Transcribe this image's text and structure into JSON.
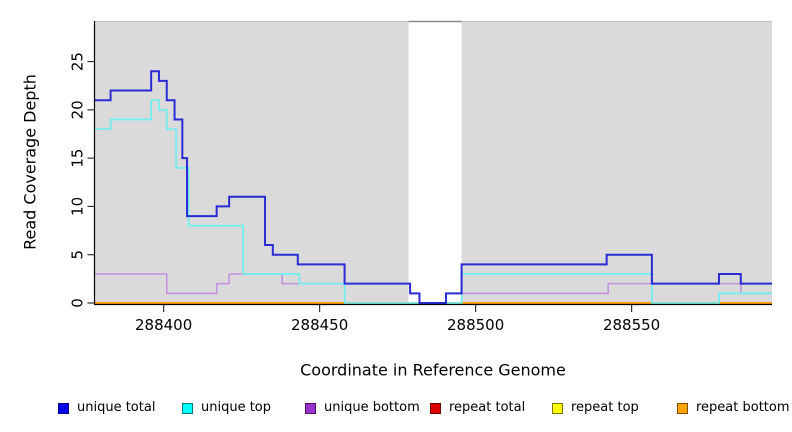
{
  "figure": {
    "x_axis_title": "Coordinate in Reference Genome",
    "y_axis_title": "Read Coverage Depth"
  },
  "chart_data": {
    "type": "line",
    "subtype": "step",
    "title": "",
    "xlabel": "Coordinate in Reference Genome",
    "ylabel": "Read Coverage Depth",
    "xlim": [
      288378,
      288595
    ],
    "ylim": [
      0,
      29.2
    ],
    "x_ticks": [
      288400,
      288450,
      288500,
      288550
    ],
    "y_ticks": [
      0,
      5,
      10,
      15,
      20,
      25
    ],
    "grid": false,
    "plot_bg": "#DADADA",
    "plot_top_edge": "#C4C4C4",
    "gap_region": {
      "x_start": 288478.5,
      "x_end": 288495.5,
      "fill": "#FFFFFF",
      "top_border": "#8A8A8A"
    },
    "legend_position": "bottom",
    "series": [
      {
        "name": "repeat-total",
        "label": "repeat total",
        "line_color": "#CC0000",
        "line_width": 1.4,
        "points": [
          [
            288378,
            0
          ]
        ]
      },
      {
        "name": "repeat-top",
        "label": "repeat top",
        "line_color": "#FFFF00",
        "line_width": 1.4,
        "points": [
          [
            288378,
            0
          ]
        ]
      },
      {
        "name": "repeat-bottom",
        "label": "repeat bottom",
        "line_color": "#FF9D0A",
        "line_width": 2,
        "points": [
          [
            288378,
            0
          ]
        ]
      },
      {
        "name": "unique-bottom",
        "label": "unique bottom",
        "line_color": "#C48FE0",
        "line_width": 1.5,
        "points": [
          [
            288378,
            3
          ],
          [
            288401,
            1
          ],
          [
            288417,
            2
          ],
          [
            288421,
            3
          ],
          [
            288438,
            2
          ],
          [
            288479,
            1
          ],
          [
            288482,
            0
          ],
          [
            288490.5,
            1
          ],
          [
            288542.5,
            2
          ],
          [
            288585,
            1
          ]
        ]
      },
      {
        "name": "unique-top",
        "label": "unique top",
        "line_color": "#6FEFEF",
        "line_width": 1.7,
        "points": [
          [
            288378,
            18
          ],
          [
            288383,
            19
          ],
          [
            288396,
            21
          ],
          [
            288398.5,
            20
          ],
          [
            288401,
            18
          ],
          [
            288404,
            14
          ],
          [
            288408,
            8
          ],
          [
            288425.5,
            3
          ],
          [
            288443.5,
            2
          ],
          [
            288458,
            0
          ],
          [
            288495.5,
            3
          ],
          [
            288556.5,
            0
          ],
          [
            288578,
            1
          ]
        ]
      },
      {
        "name": "unique-total",
        "label": "unique total",
        "line_color": "#2B2BD5",
        "line_width": 2,
        "points": [
          [
            288378,
            21
          ],
          [
            288383,
            22
          ],
          [
            288396,
            24
          ],
          [
            288398.5,
            23
          ],
          [
            288401,
            21
          ],
          [
            288403.5,
            19
          ],
          [
            288406,
            15
          ],
          [
            288407.5,
            9
          ],
          [
            288417,
            10
          ],
          [
            288421,
            11
          ],
          [
            288432.5,
            6
          ],
          [
            288435,
            5
          ],
          [
            288443,
            4
          ],
          [
            288458,
            2
          ],
          [
            288479,
            1
          ],
          [
            288482,
            0
          ],
          [
            288490.5,
            1
          ],
          [
            288495.5,
            4
          ],
          [
            288542,
            5
          ],
          [
            288556.5,
            2
          ],
          [
            288578,
            3
          ],
          [
            288585,
            2
          ]
        ]
      }
    ]
  },
  "legend": {
    "items": [
      {
        "label": "unique total",
        "swatch": "#0000EE",
        "border": "#00008B"
      },
      {
        "label": "unique top",
        "swatch": "#00FFFF",
        "border": "#007A7A"
      },
      {
        "label": "unique bottom",
        "swatch": "#9932CC",
        "border": "#4B0F66"
      },
      {
        "label": "repeat total",
        "swatch": "#DD0000",
        "border": "#6E0000"
      },
      {
        "label": "repeat top",
        "swatch": "#FFFF00",
        "border": "#7A7A00"
      },
      {
        "label": "repeat bottom",
        "swatch": "#FFA500",
        "border": "#7A5200"
      }
    ]
  }
}
